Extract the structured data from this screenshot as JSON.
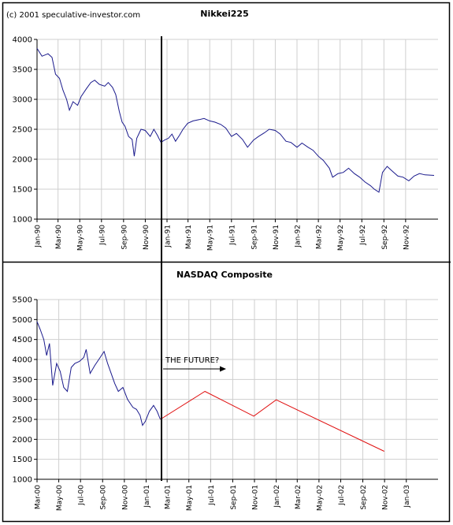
{
  "copyright": "(c) 2001 speculative-investor.com",
  "colors": {
    "series": "#1a1a8c",
    "projection": "#e01010",
    "frame": "#000000",
    "grid": "#cfcfcf"
  },
  "chart_data": [
    {
      "type": "line",
      "title": "Nikkei225",
      "ylim": [
        1000,
        4000
      ],
      "yticks": [
        1000,
        1500,
        2000,
        2500,
        3000,
        3500,
        4000
      ],
      "xlim": [
        "1990-01-01",
        "1993-01-31"
      ],
      "xticks": [
        "Jan-90",
        "Mar-90",
        "May-90",
        "Jul-90",
        "Sep-90",
        "Nov-90",
        "Jan-91",
        "Mar-91",
        "May-91",
        "Jul-91",
        "Sep-91",
        "Nov-91",
        "Jan-92",
        "Mar-92",
        "May-92",
        "Jul-92",
        "Sep-92",
        "Nov-92"
      ],
      "grid": true,
      "series": [
        {
          "values": [
            [
              "1990-01-01",
              3850
            ],
            [
              "1990-01-15",
              3720
            ],
            [
              "1990-02-01",
              3760
            ],
            [
              "1990-02-12",
              3700
            ],
            [
              "1990-02-22",
              3420
            ],
            [
              "1990-03-05",
              3350
            ],
            [
              "1990-03-15",
              3150
            ],
            [
              "1990-03-25",
              3000
            ],
            [
              "1990-04-02",
              2820
            ],
            [
              "1990-04-12",
              2960
            ],
            [
              "1990-04-25",
              2900
            ],
            [
              "1990-05-05",
              3050
            ],
            [
              "1990-05-20",
              3180
            ],
            [
              "1990-06-01",
              3280
            ],
            [
              "1990-06-12",
              3320
            ],
            [
              "1990-06-25",
              3250
            ],
            [
              "1990-07-10",
              3220
            ],
            [
              "1990-07-20",
              3280
            ],
            [
              "1990-08-01",
              3200
            ],
            [
              "1990-08-10",
              3080
            ],
            [
              "1990-08-20",
              2800
            ],
            [
              "1990-08-28",
              2620
            ],
            [
              "1990-09-05",
              2550
            ],
            [
              "1990-09-15",
              2380
            ],
            [
              "1990-09-25",
              2330
            ],
            [
              "1990-10-01",
              2050
            ],
            [
              "1990-10-08",
              2350
            ],
            [
              "1990-10-20",
              2500
            ],
            [
              "1990-11-01",
              2480
            ],
            [
              "1990-11-15",
              2380
            ],
            [
              "1990-11-25",
              2500
            ],
            [
              "1990-12-05",
              2400
            ],
            [
              "1990-12-15",
              2280
            ],
            [
              "1990-12-25",
              2320
            ],
            [
              "1991-01-05",
              2350
            ],
            [
              "1991-01-15",
              2420
            ],
            [
              "1991-01-25",
              2300
            ],
            [
              "1991-02-05",
              2400
            ],
            [
              "1991-02-15",
              2500
            ],
            [
              "1991-02-28",
              2600
            ],
            [
              "1991-03-15",
              2640
            ],
            [
              "1991-04-01",
              2660
            ],
            [
              "1991-04-15",
              2680
            ],
            [
              "1991-05-01",
              2640
            ],
            [
              "1991-05-15",
              2620
            ],
            [
              "1991-06-01",
              2580
            ],
            [
              "1991-06-15",
              2520
            ],
            [
              "1991-07-01",
              2380
            ],
            [
              "1991-07-15",
              2430
            ],
            [
              "1991-08-01",
              2330
            ],
            [
              "1991-08-15",
              2200
            ],
            [
              "1991-09-01",
              2320
            ],
            [
              "1991-09-15",
              2380
            ],
            [
              "1991-10-01",
              2440
            ],
            [
              "1991-10-15",
              2500
            ],
            [
              "1991-11-01",
              2480
            ],
            [
              "1991-11-15",
              2420
            ],
            [
              "1991-12-01",
              2300
            ],
            [
              "1991-12-15",
              2280
            ],
            [
              "1992-01-01",
              2200
            ],
            [
              "1992-01-15",
              2270
            ],
            [
              "1992-02-01",
              2200
            ],
            [
              "1992-02-15",
              2150
            ],
            [
              "1992-03-01",
              2050
            ],
            [
              "1992-03-15",
              1980
            ],
            [
              "1992-04-01",
              1850
            ],
            [
              "1992-04-10",
              1700
            ],
            [
              "1992-04-25",
              1760
            ],
            [
              "1992-05-10",
              1780
            ],
            [
              "1992-05-25",
              1850
            ],
            [
              "1992-06-10",
              1760
            ],
            [
              "1992-06-25",
              1700
            ],
            [
              "1992-07-10",
              1620
            ],
            [
              "1992-07-25",
              1560
            ],
            [
              "1992-08-05",
              1500
            ],
            [
              "1992-08-18",
              1450
            ],
            [
              "1992-08-28",
              1780
            ],
            [
              "1992-09-10",
              1880
            ],
            [
              "1992-09-25",
              1800
            ],
            [
              "1992-10-10",
              1720
            ],
            [
              "1992-10-25",
              1700
            ],
            [
              "1992-11-10",
              1640
            ],
            [
              "1992-11-25",
              1720
            ],
            [
              "1992-12-10",
              1760
            ],
            [
              "1992-12-25",
              1740
            ],
            [
              "1993-01-20",
              1730
            ]
          ]
        }
      ]
    },
    {
      "type": "line",
      "title": "NASDAQ Composite",
      "ylim": [
        1000,
        5500
      ],
      "yticks": [
        1000,
        1500,
        2000,
        2500,
        3000,
        3500,
        4000,
        4500,
        5000,
        5500
      ],
      "xlim": [
        "2000-03-01",
        "2003-03-31"
      ],
      "xticks": [
        "Mar-00",
        "May-00",
        "Jul-00",
        "Sep-00",
        "Nov-00",
        "Jan-01",
        "Mar-01",
        "May-01",
        "Jul-01",
        "Sep-01",
        "Nov-01",
        "Jan-02",
        "Mar-02",
        "May-02",
        "Jul-02",
        "Sep-02",
        "Nov-02",
        "Jan-03"
      ],
      "grid": true,
      "annotation": "THE FUTURE?",
      "series": [
        {
          "values": [
            [
              "2000-03-01",
              4950
            ],
            [
              "2000-03-10",
              4750
            ],
            [
              "2000-03-20",
              4500
            ],
            [
              "2000-03-28",
              4100
            ],
            [
              "2000-04-05",
              4400
            ],
            [
              "2000-04-14",
              3350
            ],
            [
              "2000-04-25",
              3900
            ],
            [
              "2000-05-05",
              3700
            ],
            [
              "2000-05-15",
              3300
            ],
            [
              "2000-05-25",
              3200
            ],
            [
              "2000-06-05",
              3800
            ],
            [
              "2000-06-15",
              3900
            ],
            [
              "2000-06-28",
              3950
            ],
            [
              "2000-07-10",
              4050
            ],
            [
              "2000-07-17",
              4250
            ],
            [
              "2000-07-28",
              3650
            ],
            [
              "2000-08-10",
              3850
            ],
            [
              "2000-08-25",
              4050
            ],
            [
              "2000-09-05",
              4200
            ],
            [
              "2000-09-15",
              3900
            ],
            [
              "2000-09-25",
              3650
            ],
            [
              "2000-10-05",
              3400
            ],
            [
              "2000-10-15",
              3200
            ],
            [
              "2000-10-28",
              3300
            ],
            [
              "2000-11-10",
              3000
            ],
            [
              "2000-11-25",
              2800
            ],
            [
              "2000-12-05",
              2750
            ],
            [
              "2000-12-15",
              2600
            ],
            [
              "2000-12-22",
              2350
            ],
            [
              "2000-12-30",
              2450
            ],
            [
              "2001-01-10",
              2700
            ],
            [
              "2001-01-22",
              2850
            ],
            [
              "2001-02-01",
              2700
            ],
            [
              "2001-02-10",
              2500
            ]
          ]
        },
        {
          "name": "",
          "projection": true,
          "values": [
            [
              "2001-02-10",
              2500
            ],
            [
              "2001-06-15",
              3200
            ],
            [
              "2001-10-30",
              2580
            ],
            [
              "2002-01-01",
              2990
            ],
            [
              "2002-10-31",
              1700
            ]
          ]
        }
      ]
    }
  ]
}
